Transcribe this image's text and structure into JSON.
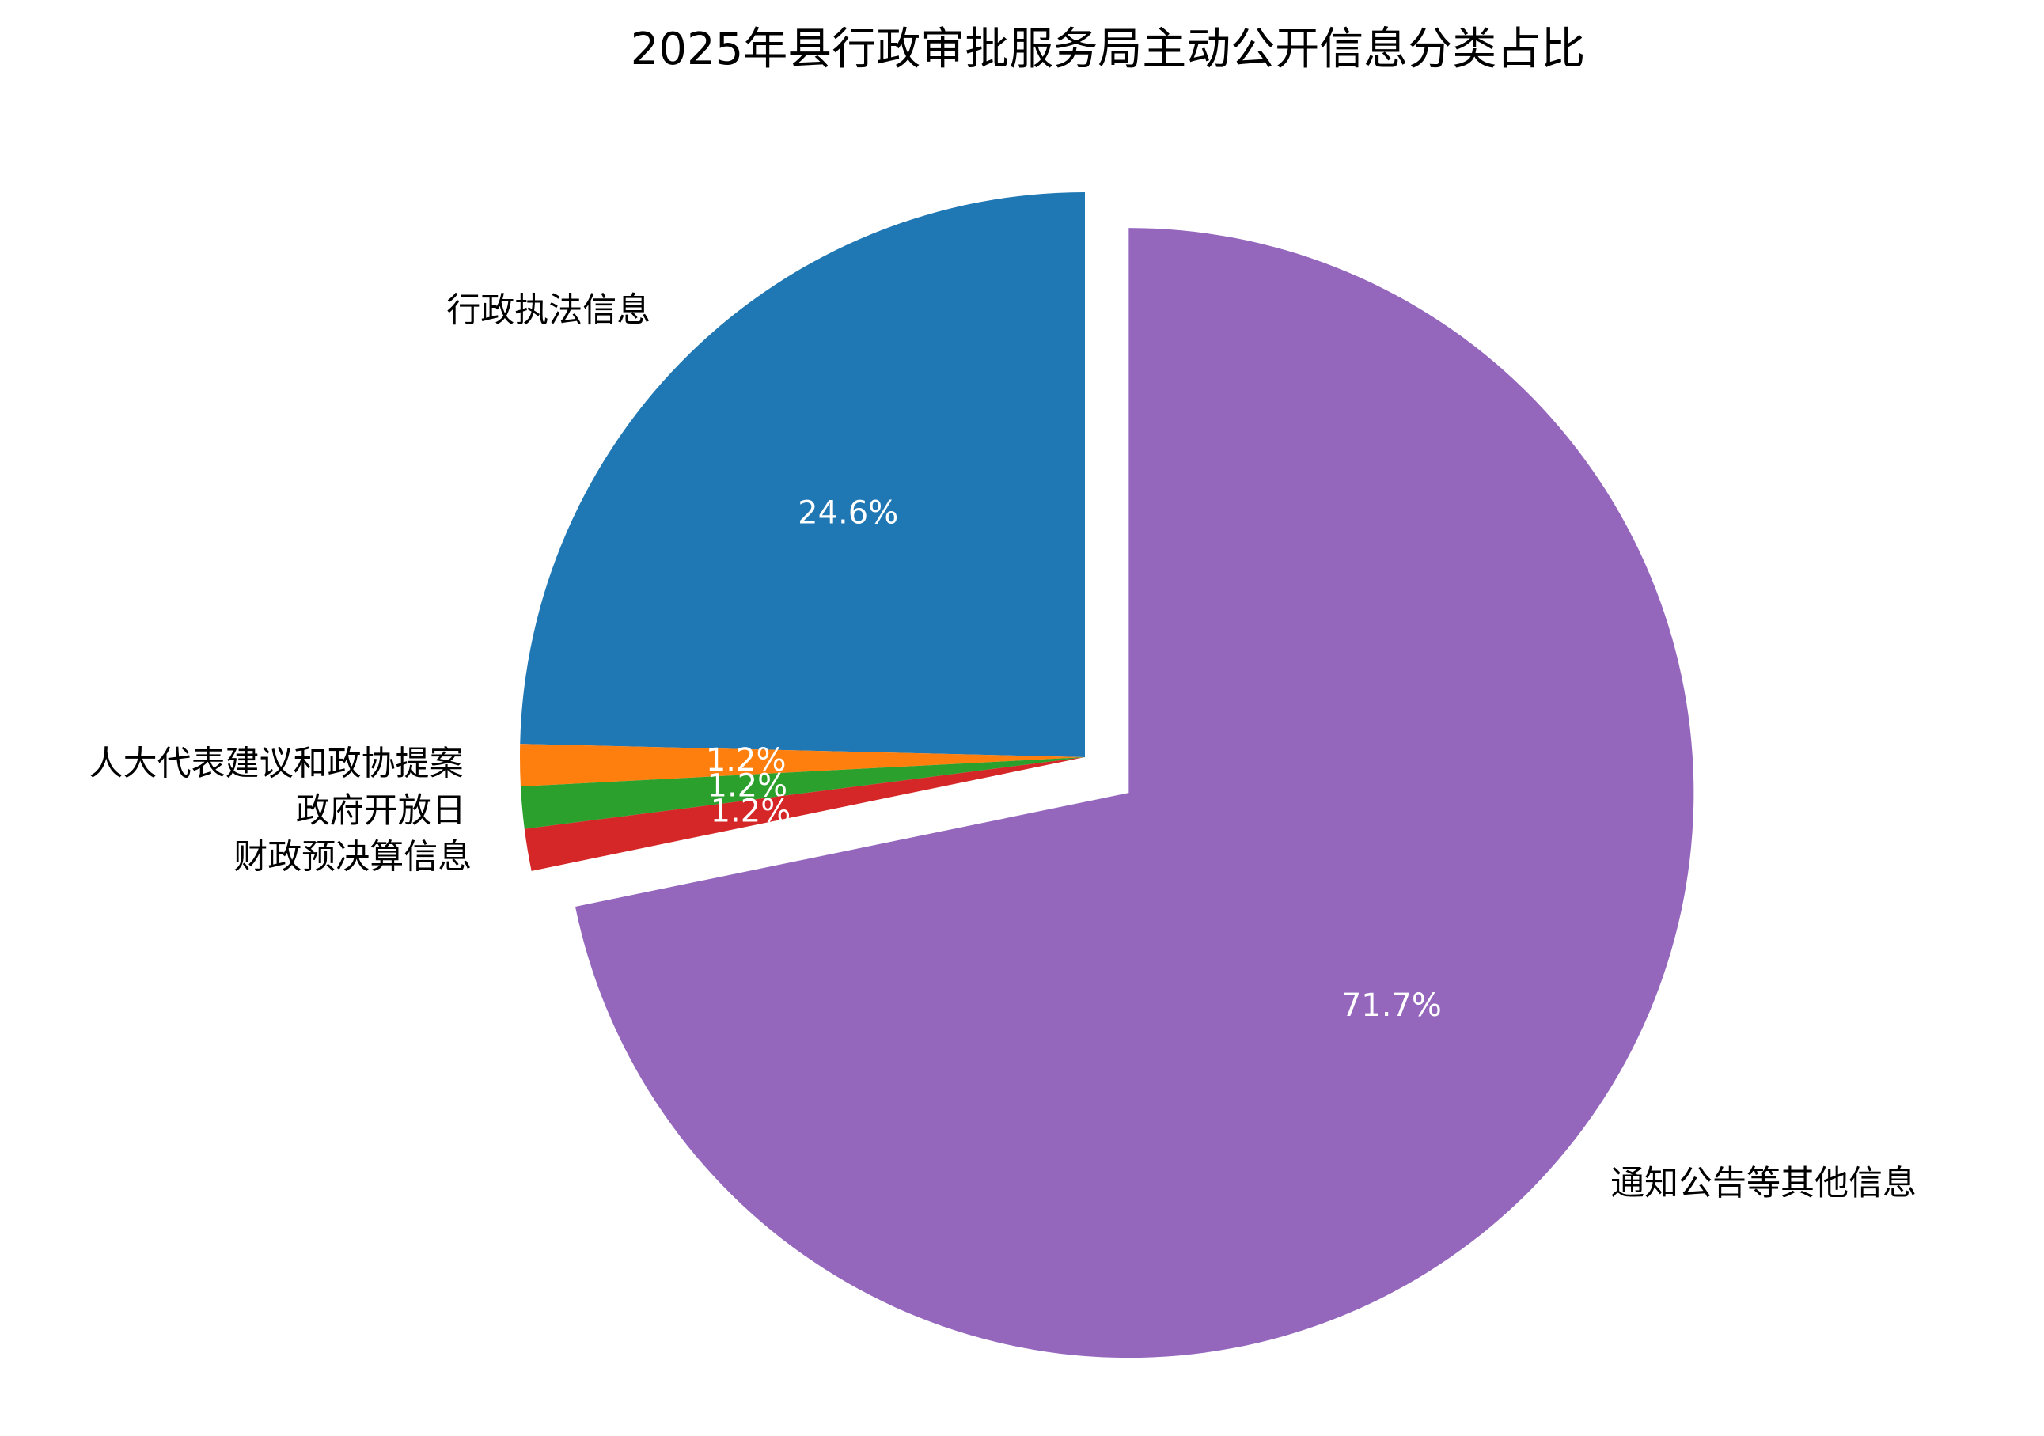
{
  "chart_data": {
    "type": "pie",
    "title": "2025年县行政审批服务局主动公开信息分类占比",
    "categories": [
      "行政执法信息",
      "人大代表建议和政协提案",
      "政府开放日",
      "财政预决算信息",
      "通知公告等其他信息"
    ],
    "values": [
      24.6,
      1.2,
      1.2,
      1.2,
      71.7
    ],
    "value_labels": [
      "24.6%",
      "1.2%",
      "1.2%",
      "1.2%",
      "71.7%"
    ],
    "colors": [
      "#1f77b4",
      "#ff7f0e",
      "#2ca02c",
      "#d62728",
      "#9467bd"
    ],
    "explode": [
      0,
      0,
      0,
      0,
      0.1
    ]
  }
}
